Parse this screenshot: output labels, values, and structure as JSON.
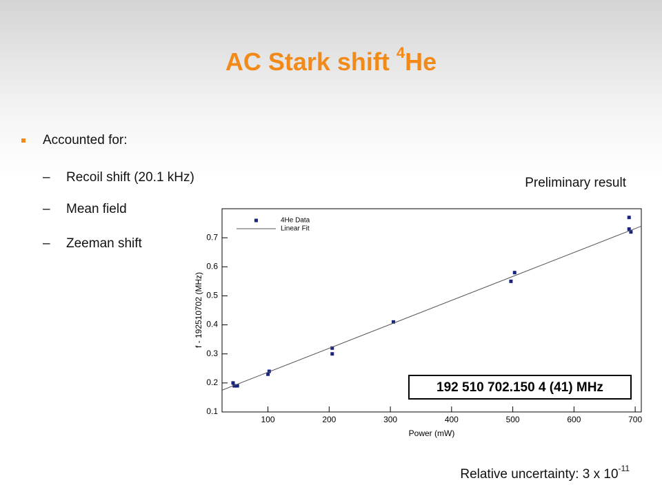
{
  "slide": {
    "title": {
      "text": "AC Stark shift ",
      "sup": "4",
      "after": "He"
    },
    "bullet": "Accounted for:",
    "subitems": [
      "Recoil shift (20.1 kHz)",
      "Mean field",
      "Zeeman shift"
    ],
    "dash": "–",
    "preliminary": "Preliminary result",
    "uncertainty": {
      "text": "Relative uncertainty: 3 x 10",
      "sup": "-11"
    }
  },
  "chart_data": {
    "type": "scatter",
    "xlabel": "Power (mW)",
    "ylabel": "f - 192510702 (MHz)",
    "annotation": "192 510 702.150 4 (41) MHz",
    "legend": "upper left",
    "xlim": [
      25,
      710
    ],
    "ylim": [
      0.1,
      0.8
    ],
    "xticks": [
      100,
      200,
      300,
      400,
      500,
      600,
      700
    ],
    "yticks": [
      0.1,
      0.2,
      0.3,
      0.4,
      0.5,
      0.6,
      0.7
    ],
    "series": [
      {
        "name": "4He Data",
        "type": "scatter",
        "color": "#1a237e",
        "x": [
          43,
          45,
          47,
          50,
          100,
          102,
          205,
          205,
          305,
          497,
          503,
          690,
          690,
          693
        ],
        "values": [
          0.2,
          0.19,
          0.19,
          0.19,
          0.23,
          0.24,
          0.32,
          0.3,
          0.41,
          0.55,
          0.58,
          0.77,
          0.73,
          0.72
        ]
      },
      {
        "name": "Linear Fit",
        "type": "line",
        "color": "#555555",
        "x": [
          25,
          710
        ],
        "values": [
          0.175,
          0.74
        ]
      }
    ]
  }
}
